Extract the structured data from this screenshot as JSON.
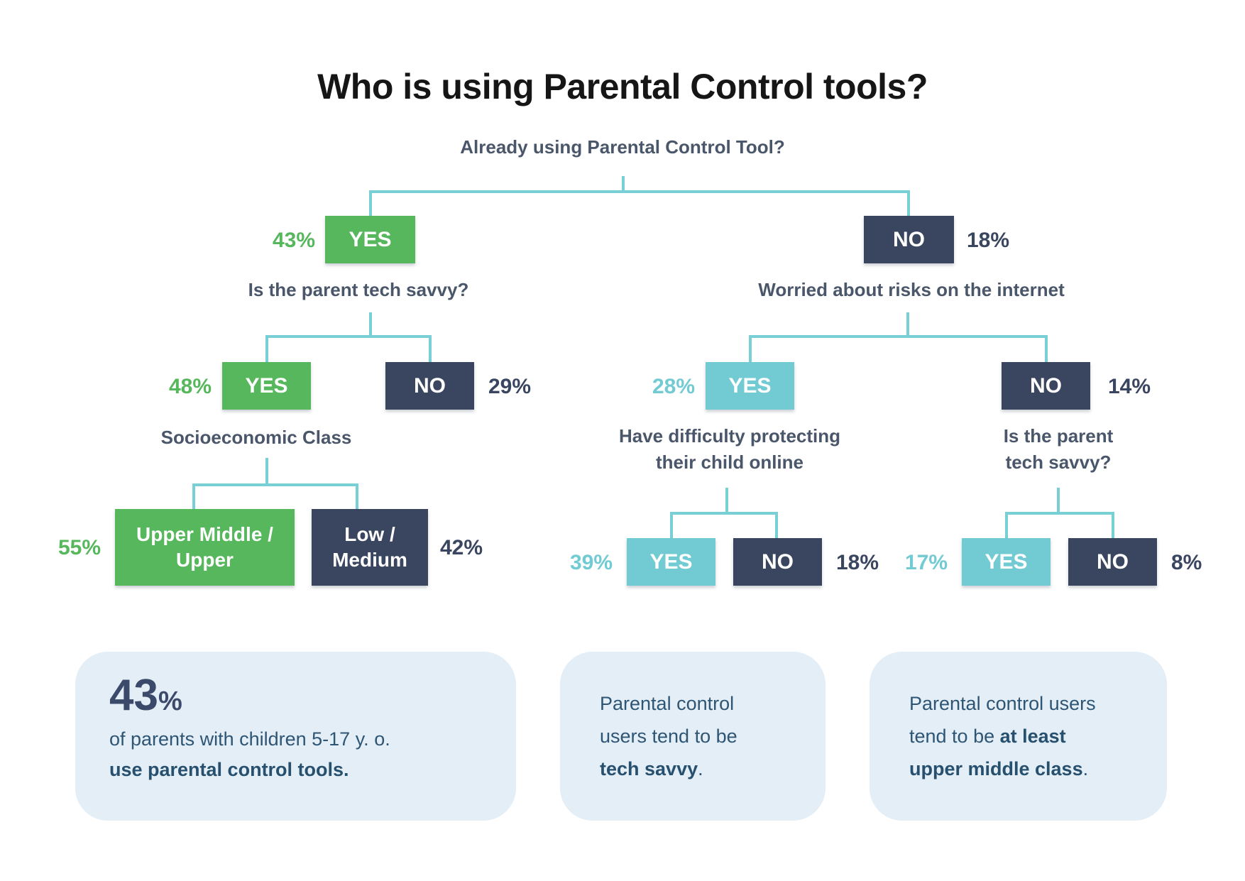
{
  "title": "Who is using Parental Control tools?",
  "root_question": "Already using Parental Control Tool?",
  "colors": {
    "green": "#57b75c",
    "navy": "#3a4660",
    "teal": "#72cbd3",
    "connector": "#79cfd6",
    "card_bg": "#e4eef6"
  },
  "level1": {
    "yes": {
      "label": "YES",
      "pct": "43%"
    },
    "no": {
      "label": "NO",
      "pct": "18%"
    }
  },
  "branch_yes": {
    "question": "Is the parent tech savvy?",
    "yes": {
      "label": "YES",
      "pct": "48%"
    },
    "no": {
      "label": "NO",
      "pct": "29%"
    },
    "socio": {
      "question": "Socioeconomic Class",
      "upper": {
        "label_line1": "Upper Middle /",
        "label_line2": "Upper",
        "pct": "55%"
      },
      "low": {
        "label_line1": "Low /",
        "label_line2": "Medium",
        "pct": "42%"
      }
    }
  },
  "branch_no": {
    "question": "Worried about risks on the internet",
    "yes": {
      "label": "YES",
      "pct": "28%"
    },
    "no": {
      "label": "NO",
      "pct": "14%"
    },
    "difficulty": {
      "question_line1": "Have difficulty protecting",
      "question_line2": "their child online",
      "yes": {
        "label": "YES",
        "pct": "39%"
      },
      "no": {
        "label": "NO",
        "pct": "18%"
      }
    },
    "tech": {
      "question_line1": "Is the parent",
      "question_line2": "tech savvy?",
      "yes": {
        "label": "YES",
        "pct": "17%"
      },
      "no": {
        "label": "NO",
        "pct": "8%"
      }
    }
  },
  "cards": {
    "stat": {
      "number": "43",
      "sign": "%",
      "line1": "of parents with children 5-17 y. o.",
      "line2": "use parental control tools."
    },
    "tech": {
      "line1": "Parental control",
      "line2": "users tend to be",
      "bold": "tech savvy",
      "tail": "."
    },
    "class": {
      "line1": "Parental control users",
      "line2a": "tend to be ",
      "line2b": "at least",
      "line3b": "upper middle class",
      "tail": "."
    }
  }
}
